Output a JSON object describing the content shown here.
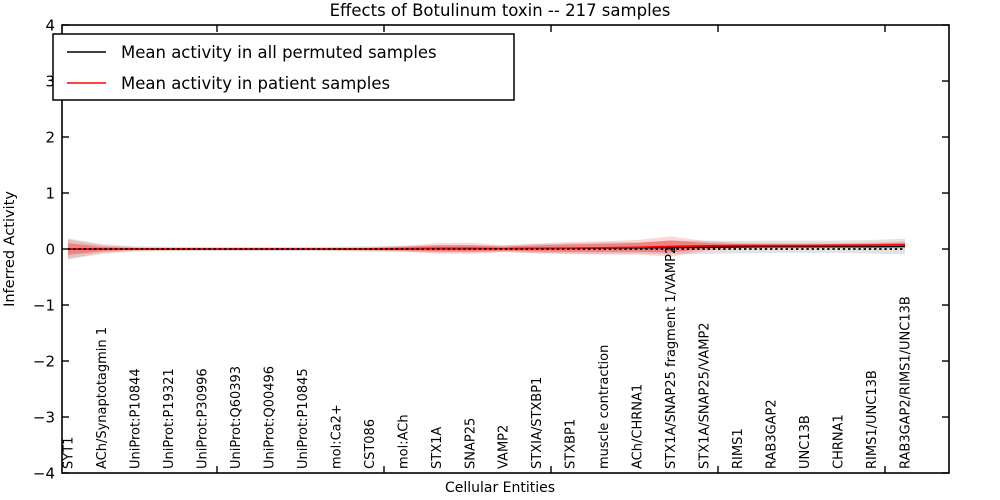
{
  "chart_data": {
    "type": "line",
    "title": "Effects of Botulinum toxin -- 217 samples",
    "xlabel": "Cellular Entities",
    "ylabel": "Inferred Activity",
    "ylim": [
      -4,
      4
    ],
    "grid": false,
    "legend_position": "upper left",
    "zero_line_style": "dashed-black",
    "yticks": [
      {
        "value": 4,
        "label": "4"
      },
      {
        "value": 3,
        "label": "3"
      },
      {
        "value": 2,
        "label": "2"
      },
      {
        "value": 1,
        "label": "1"
      },
      {
        "value": 0,
        "label": "0"
      },
      {
        "value": -1,
        "label": "−1"
      },
      {
        "value": -2,
        "label": "−2"
      },
      {
        "value": -3,
        "label": "−3"
      },
      {
        "value": -4,
        "label": "−4"
      }
    ],
    "categories": [
      "SYT1",
      "ACh/Synaptotagmin 1",
      "UniProt:P10844",
      "UniProt:P19321",
      "UniProt:P30996",
      "UniProt:Q60393",
      "UniProt:Q00496",
      "UniProt:P10845",
      "mol:Ca2+",
      "CST086",
      "mol:ACh",
      "STX1A",
      "SNAP25",
      "VAMP2",
      "STXIA/STXBP1",
      "STXBP1",
      "muscle contraction",
      "ACh/CHRNA1",
      "STX1A/SNAP25 fragment 1/VAMP2",
      "STX1A/SNAP25/VAMP2",
      "RIMS1",
      "RAB3GAP2",
      "UNC13B",
      "CHRNA1",
      "RIMS1/UNC13B",
      "RAB3GAP2/RIMS1/UNC13B"
    ],
    "series": [
      {
        "name": "Mean activity in all permuted samples",
        "color": "#000000",
        "band_color": "#bfbfbf",
        "values": [
          0,
          0,
          0,
          0,
          0,
          0,
          0,
          0,
          0,
          0,
          0,
          0.005,
          0.005,
          0.005,
          0.01,
          0.01,
          0.015,
          0.02,
          0.025,
          0.03,
          0.035,
          0.04,
          0.04,
          0.04,
          0.04,
          0.045
        ],
        "band": [
          0.19,
          0.09,
          0.05,
          0.042,
          0.04,
          0.04,
          0.04,
          0.04,
          0.042,
          0.05,
          0.055,
          0.06,
          0.06,
          0.06,
          0.075,
          0.09,
          0.1,
          0.1,
          0.12,
          0.12,
          0.11,
          0.11,
          0.11,
          0.11,
          0.12,
          0.14
        ]
      },
      {
        "name": "Mean activity in patient samples",
        "color": "#ff0000",
        "band_color": "#ff0000",
        "values": [
          0,
          0,
          0,
          0,
          0,
          0,
          0,
          0,
          0,
          0,
          0.005,
          0.01,
          0.01,
          0.005,
          0.01,
          0.015,
          0.02,
          0.03,
          0.045,
          0.055,
          0.06,
          0.06,
          0.06,
          0.065,
          0.07,
          0.075
        ],
        "band": [
          0.17,
          0.07,
          0.03,
          0.022,
          0.02,
          0.02,
          0.02,
          0.02,
          0.022,
          0.03,
          0.05,
          0.095,
          0.1,
          0.06,
          0.09,
          0.11,
          0.12,
          0.13,
          0.18,
          0.09,
          0.05,
          0.042,
          0.04,
          0.04,
          0.045,
          0.06
        ]
      }
    ]
  }
}
